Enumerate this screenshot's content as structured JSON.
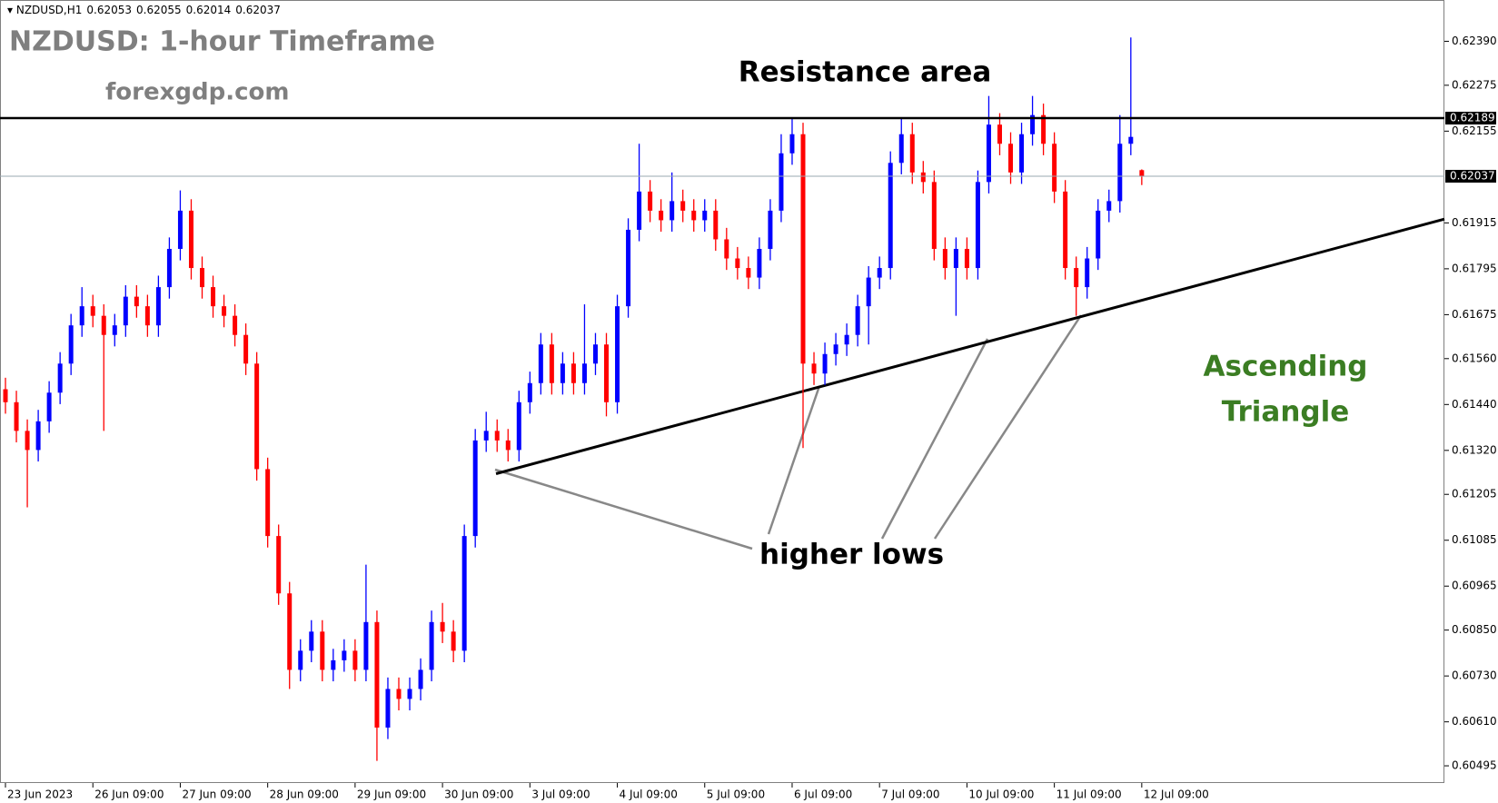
{
  "chart_data": {
    "type": "candlestick",
    "symbol": "NZDUSD,H1",
    "header_values": [
      0.62053,
      0.62055,
      0.62014,
      0.62037
    ],
    "title": "NZDUSD: 1-hour Timeframe",
    "subtitle": "forexgdp.com",
    "annotations": [
      "Resistance area",
      "higher lows",
      "Ascending",
      "Triangle"
    ],
    "up_color": "#0000ff",
    "down_color": "#ff0000",
    "xlim": [
      -0.5,
      131.7
    ],
    "ylim": [
      0.6045,
      0.62498
    ],
    "yticks": [
      {
        "value": 0.6239,
        "label": "0.62390"
      },
      0.62275,
      0.62155,
      0.61915,
      0.61795,
      0.61675,
      {
        "value": 0.6156,
        "label": "0.61560"
      },
      {
        "value": 0.6144,
        "label": "0.61440"
      },
      {
        "value": 0.6132,
        "label": "0.61320"
      },
      0.61205,
      0.61085,
      0.60965,
      {
        "value": 0.6085,
        "label": "0.60850"
      },
      {
        "value": 0.6073,
        "label": "0.60730"
      },
      {
        "value": 0.6061,
        "label": "0.60610"
      },
      0.60495
    ],
    "xticks": [
      {
        "value": 0,
        "label": "23 Jun 2023"
      },
      {
        "value": 8,
        "label": "26 Jun 09:00"
      },
      {
        "value": 16,
        "label": "27 Jun 09:00"
      },
      {
        "value": 24,
        "label": "28 Jun 09:00"
      },
      {
        "value": 32,
        "label": "29 Jun 09:00"
      },
      {
        "value": 40,
        "label": "30 Jun 09:00"
      },
      {
        "value": 48,
        "label": "3 Jul 09:00"
      },
      {
        "value": 56,
        "label": "4 Jul 09:00"
      },
      {
        "value": 64,
        "label": "5 Jul 09:00"
      },
      {
        "value": 72,
        "label": "6 Jul 09:00"
      },
      {
        "value": 80,
        "label": "7 Jul 09:00"
      },
      {
        "value": 88,
        "label": "10 Jul 09:00"
      },
      {
        "value": 96,
        "label": "11 Jul 09:00"
      },
      {
        "value": 104,
        "label": "12 Jul 09:00"
      }
    ],
    "levels": [
      {
        "price": 0.62189,
        "color": "#000000"
      },
      {
        "price": 0.62037,
        "color": "#9aa8b2"
      }
    ],
    "trendline": [
      [
        44.9,
        0.61259
      ],
      [
        131.7,
        0.61925
      ]
    ],
    "ohlc": [
      [
        0.6148,
        0.6151,
        0.61416,
        0.61446
      ],
      [
        0.61446,
        0.61476,
        0.61341,
        0.61371
      ],
      [
        0.61371,
        0.61401,
        0.61171,
        0.61321
      ],
      [
        0.61321,
        0.61426,
        0.61291,
        0.61396
      ],
      [
        0.61396,
        0.61501,
        0.61366,
        0.61471
      ],
      [
        0.61471,
        0.61577,
        0.61441,
        0.61547
      ],
      [
        0.61547,
        0.61677,
        0.61517,
        0.61647
      ],
      [
        0.61647,
        0.61747,
        0.61617,
        0.61697
      ],
      [
        0.61697,
        0.61727,
        0.61642,
        0.61672
      ],
      [
        0.61672,
        0.61702,
        0.61371,
        0.61622
      ],
      [
        0.61622,
        0.61677,
        0.61592,
        0.61647
      ],
      [
        0.61647,
        0.61752,
        0.61617,
        0.61722
      ],
      [
        0.61722,
        0.61752,
        0.61667,
        0.61697
      ],
      [
        0.61697,
        0.61727,
        0.61617,
        0.61647
      ],
      [
        0.61647,
        0.61777,
        0.61617,
        0.61747
      ],
      [
        0.61747,
        0.61877,
        0.61717,
        0.61847
      ],
      [
        0.61847,
        0.62,
        0.61817,
        0.61947
      ],
      [
        0.61947,
        0.61977,
        0.61767,
        0.61797
      ],
      [
        0.61797,
        0.61827,
        0.61717,
        0.61747
      ],
      [
        0.61747,
        0.61777,
        0.61667,
        0.61697
      ],
      [
        0.61697,
        0.61727,
        0.61642,
        0.61672
      ],
      [
        0.61672,
        0.61702,
        0.61592,
        0.61622
      ],
      [
        0.61622,
        0.61652,
        0.61517,
        0.61547
      ],
      [
        0.61547,
        0.61577,
        0.61241,
        0.61271
      ],
      [
        0.61271,
        0.61301,
        0.61066,
        0.61096
      ],
      [
        0.61096,
        0.61126,
        0.60916,
        0.60946
      ],
      [
        0.60946,
        0.60976,
        0.60696,
        0.60746
      ],
      [
        0.60746,
        0.60826,
        0.60716,
        0.60796
      ],
      [
        0.60796,
        0.60876,
        0.60766,
        0.60846
      ],
      [
        0.60846,
        0.60876,
        0.60716,
        0.60746
      ],
      [
        0.60746,
        0.60801,
        0.60716,
        0.60771
      ],
      [
        0.60771,
        0.60826,
        0.60741,
        0.60796
      ],
      [
        0.60796,
        0.60826,
        0.60716,
        0.60746
      ],
      [
        0.60746,
        0.61021,
        0.60716,
        0.60871
      ],
      [
        0.60871,
        0.60901,
        0.60508,
        0.60595
      ],
      [
        0.60595,
        0.60726,
        0.60565,
        0.60696
      ],
      [
        0.60696,
        0.60726,
        0.6064,
        0.6067
      ],
      [
        0.6067,
        0.60726,
        0.6064,
        0.60696
      ],
      [
        0.60696,
        0.60776,
        0.60666,
        0.60746
      ],
      [
        0.60746,
        0.60901,
        0.60716,
        0.60871
      ],
      [
        0.60871,
        0.60921,
        0.60816,
        0.60846
      ],
      [
        0.60846,
        0.60876,
        0.60766,
        0.60796
      ],
      [
        0.60796,
        0.61126,
        0.60766,
        0.61096
      ],
      [
        0.61096,
        0.61376,
        0.61066,
        0.61346
      ],
      [
        0.61346,
        0.61421,
        0.61316,
        0.61371
      ],
      [
        0.61371,
        0.61401,
        0.61316,
        0.61346
      ],
      [
        0.61346,
        0.61376,
        0.61291,
        0.61321
      ],
      [
        0.61321,
        0.61476,
        0.61291,
        0.61446
      ],
      [
        0.61446,
        0.61526,
        0.61416,
        0.61496
      ],
      [
        0.61496,
        0.61627,
        0.61466,
        0.61597
      ],
      [
        0.61597,
        0.61627,
        0.61466,
        0.61496
      ],
      [
        0.61496,
        0.61577,
        0.61466,
        0.61547
      ],
      [
        0.61547,
        0.61577,
        0.61466,
        0.61496
      ],
      [
        0.61496,
        0.61702,
        0.61466,
        0.61547
      ],
      [
        0.61547,
        0.61627,
        0.61517,
        0.61597
      ],
      [
        0.61597,
        0.61627,
        0.61409,
        0.61446
      ],
      [
        0.61446,
        0.61727,
        0.61416,
        0.61697
      ],
      [
        0.61697,
        0.61927,
        0.61667,
        0.61897
      ],
      [
        0.61897,
        0.62122,
        0.61867,
        0.61997
      ],
      [
        0.61997,
        0.62027,
        0.61917,
        0.61947
      ],
      [
        0.61947,
        0.61977,
        0.61892,
        0.61922
      ],
      [
        0.61922,
        0.62047,
        0.61892,
        0.61972
      ],
      [
        0.61972,
        0.62002,
        0.61917,
        0.61947
      ],
      [
        0.61947,
        0.61977,
        0.61892,
        0.61922
      ],
      [
        0.61922,
        0.61977,
        0.61892,
        0.61947
      ],
      [
        0.61947,
        0.61977,
        0.61842,
        0.61872
      ],
      [
        0.61872,
        0.61902,
        0.61792,
        0.61822
      ],
      [
        0.61822,
        0.61852,
        0.61767,
        0.61797
      ],
      [
        0.61797,
        0.61827,
        0.61742,
        0.61772
      ],
      [
        0.61772,
        0.61877,
        0.61742,
        0.61847
      ],
      [
        0.61847,
        0.61977,
        0.61817,
        0.61947
      ],
      [
        0.61947,
        0.62147,
        0.61917,
        0.62097
      ],
      [
        0.62097,
        0.6219,
        0.62067,
        0.62147
      ],
      [
        0.62147,
        0.62177,
        0.61326,
        0.61547
      ],
      [
        0.61547,
        0.61577,
        0.61491,
        0.61521
      ],
      [
        0.61521,
        0.61602,
        0.61491,
        0.61572
      ],
      [
        0.61572,
        0.61627,
        0.61542,
        0.61597
      ],
      [
        0.61597,
        0.61652,
        0.61567,
        0.61622
      ],
      [
        0.61622,
        0.61727,
        0.61592,
        0.61697
      ],
      [
        0.61697,
        0.61802,
        0.61597,
        0.61772
      ],
      [
        0.61772,
        0.61827,
        0.61742,
        0.61797
      ],
      [
        0.61797,
        0.62102,
        0.61767,
        0.62072
      ],
      [
        0.62072,
        0.6219,
        0.62042,
        0.62147
      ],
      [
        0.62147,
        0.62177,
        0.62017,
        0.62047
      ],
      [
        0.62047,
        0.62077,
        0.61992,
        0.62022
      ],
      [
        0.62022,
        0.62052,
        0.61817,
        0.61847
      ],
      [
        0.61847,
        0.61877,
        0.61767,
        0.61797
      ],
      [
        0.61797,
        0.61877,
        0.61672,
        0.61847
      ],
      [
        0.61847,
        0.61877,
        0.61767,
        0.61797
      ],
      [
        0.61797,
        0.62052,
        0.61767,
        0.62022
      ],
      [
        0.62022,
        0.62247,
        0.61992,
        0.62172
      ],
      [
        0.62172,
        0.62202,
        0.62092,
        0.62122
      ],
      [
        0.62122,
        0.62152,
        0.62017,
        0.62047
      ],
      [
        0.62047,
        0.62177,
        0.62017,
        0.62147
      ],
      [
        0.62147,
        0.62247,
        0.62117,
        0.62197
      ],
      [
        0.62197,
        0.62227,
        0.62092,
        0.62122
      ],
      [
        0.62122,
        0.62152,
        0.61967,
        0.61997
      ],
      [
        0.61997,
        0.62027,
        0.61767,
        0.61797
      ],
      [
        0.61797,
        0.61827,
        0.61672,
        0.61747
      ],
      [
        0.61747,
        0.61852,
        0.61717,
        0.61822
      ],
      [
        0.61822,
        0.61977,
        0.61792,
        0.61947
      ],
      [
        0.61947,
        0.62002,
        0.61917,
        0.61972
      ],
      [
        0.61972,
        0.62197,
        0.61942,
        0.62122
      ],
      [
        0.62122,
        0.624,
        0.62092,
        0.6214
      ],
      [
        0.62053,
        0.62055,
        0.62014,
        0.62037
      ]
    ]
  }
}
